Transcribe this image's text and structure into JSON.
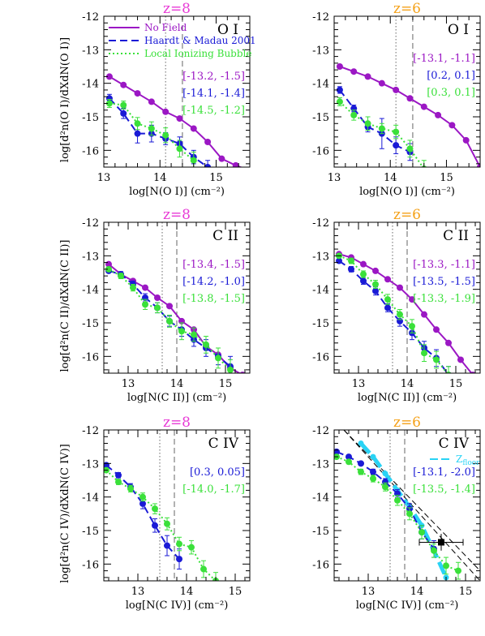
{
  "colors": {
    "no_field": "#9b17c4",
    "haardt_madau": "#1a1ad6",
    "local_bubble": "#3ae03a",
    "zfloor": "#29d3f5",
    "z8_title": "#e83ad6",
    "z6_title": "#f5a21a",
    "observed": "#000000"
  },
  "legend": [
    {
      "label": "No Field",
      "series": "no_field",
      "style": "solid"
    },
    {
      "label": "Haardt & Madau 2001",
      "series": "haardt_madau",
      "style": "dashed"
    },
    {
      "label": "Local Ionizing Bubble",
      "series": "local_bubble",
      "style": "dotted"
    }
  ],
  "zfloor_label": "Z",
  "zfloor_sub": "floor",
  "chart_data": [
    {
      "id": "p11",
      "type": "line",
      "title": "z=8",
      "title_color": "z8_title",
      "ion_label": "O I",
      "xlabel": "log[N(O I)] (cm⁻²)",
      "ylabel": "log[d²n(O I)/dXdN(O I)]",
      "xlim": [
        13.0,
        15.6
      ],
      "ylim": [
        -16.5,
        -12.0
      ],
      "xticks": [
        13,
        14,
        15
      ],
      "yticks": [
        -12,
        -13,
        -14,
        -15,
        -16
      ],
      "vlines": [
        {
          "x": 14.1,
          "style": "dotted"
        },
        {
          "x": 14.4,
          "style": "dashed"
        }
      ],
      "series": [
        {
          "key": "no_field",
          "x": [
            13.1,
            13.35,
            13.6,
            13.85,
            14.1,
            14.35,
            14.6,
            14.85,
            15.1,
            15.35,
            15.6
          ],
          "y": [
            -13.8,
            -14.05,
            -14.3,
            -14.55,
            -14.85,
            -15.05,
            -15.35,
            -15.75,
            -16.25,
            -16.45,
            -16.6
          ]
        },
        {
          "key": "haardt_madau",
          "x": [
            13.1,
            13.35,
            13.6,
            13.85,
            14.1,
            14.35,
            14.6,
            14.85
          ],
          "y": [
            -14.45,
            -14.9,
            -15.5,
            -15.5,
            -15.65,
            -15.8,
            -16.2,
            -16.5
          ],
          "err": [
            0.12,
            0.15,
            0.28,
            0.25,
            0.18,
            0.2,
            0.2,
            0.2
          ]
        },
        {
          "key": "local_bubble",
          "x": [
            13.1,
            13.35,
            13.6,
            13.85,
            14.1,
            14.35,
            14.6
          ],
          "y": [
            -14.6,
            -14.65,
            -15.2,
            -15.35,
            -15.55,
            -15.95,
            -16.3
          ],
          "err": [
            0.12,
            0.12,
            0.18,
            0.2,
            0.22,
            0.25,
            0.25
          ]
        }
      ],
      "pairs": [
        {
          "key": "no_field",
          "text": "[-13.2, -1.5]"
        },
        {
          "key": "haardt_madau",
          "text": "[-14.1, -1.4]"
        },
        {
          "key": "local_bubble",
          "text": "[-14.5, -1.2]"
        }
      ],
      "legend_shown": true
    },
    {
      "id": "p12",
      "type": "line",
      "title": "z=6",
      "title_color": "z6_title",
      "ion_label": "O I",
      "xlabel": "log[N(O I)] (cm⁻²)",
      "ylabel": "",
      "xlim": [
        13.0,
        15.6
      ],
      "ylim": [
        -16.5,
        -12.0
      ],
      "xticks": [
        13,
        14,
        15
      ],
      "yticks": [
        -12,
        -13,
        -14,
        -15,
        -16
      ],
      "vlines": [
        {
          "x": 14.1,
          "style": "dotted"
        },
        {
          "x": 14.4,
          "style": "dashed"
        }
      ],
      "series": [
        {
          "key": "no_field",
          "x": [
            13.1,
            13.35,
            13.6,
            13.85,
            14.1,
            14.35,
            14.6,
            14.85,
            15.1,
            15.35,
            15.6
          ],
          "y": [
            -13.5,
            -13.65,
            -13.8,
            -14.0,
            -14.2,
            -14.45,
            -14.7,
            -14.95,
            -15.25,
            -15.7,
            -16.5
          ]
        },
        {
          "key": "haardt_madau",
          "x": [
            13.1,
            13.35,
            13.6,
            13.85,
            14.1,
            14.35
          ],
          "y": [
            -14.2,
            -14.75,
            -15.3,
            -15.5,
            -15.85,
            -16.05
          ],
          "err": [
            0.1,
            0.1,
            0.15,
            0.45,
            0.25,
            0.25
          ]
        },
        {
          "key": "local_bubble",
          "x": [
            13.1,
            13.35,
            13.6,
            13.85,
            14.1,
            14.35,
            14.6
          ],
          "y": [
            -14.55,
            -14.95,
            -15.2,
            -15.35,
            -15.45,
            -15.95,
            -16.55
          ],
          "err": [
            0.12,
            0.15,
            0.2,
            0.15,
            0.2,
            0.25,
            0.25
          ]
        }
      ],
      "pairs": [
        {
          "key": "no_field",
          "text": "[-13.1, -1.1]"
        },
        {
          "key": "haardt_madau",
          "text": "[0.2, 0.1]"
        },
        {
          "key": "local_bubble",
          "text": "[0.3, 0.1]"
        }
      ],
      "legend_shown": false
    },
    {
      "id": "p21",
      "type": "line",
      "title": "z=8",
      "title_color": "z8_title",
      "ion_label": "C II",
      "xlabel": "log[N(C II)] (cm⁻²)",
      "ylabel": "log[d²n(C II)/dXdN(C II)]",
      "xlim": [
        12.5,
        15.5
      ],
      "ylim": [
        -16.5,
        -12.0
      ],
      "xticks": [
        13,
        14,
        15
      ],
      "yticks": [
        -12,
        -13,
        -14,
        -15,
        -16
      ],
      "vlines": [
        {
          "x": 13.7,
          "style": "dotted"
        },
        {
          "x": 14.0,
          "style": "dashed"
        }
      ],
      "series": [
        {
          "key": "no_field",
          "x": [
            12.6,
            12.85,
            13.1,
            13.35,
            13.6,
            13.85,
            14.1,
            14.35,
            14.6,
            14.85,
            15.1,
            15.35
          ],
          "y": [
            -13.25,
            -13.55,
            -13.75,
            -13.95,
            -14.25,
            -14.5,
            -14.95,
            -15.2,
            -15.7,
            -15.95,
            -16.35,
            -16.55
          ]
        },
        {
          "key": "haardt_madau",
          "x": [
            12.6,
            12.85,
            13.1,
            13.35,
            13.6,
            13.85,
            14.1,
            14.35,
            14.6,
            14.85,
            15.1
          ],
          "y": [
            -13.45,
            -13.55,
            -13.85,
            -14.25,
            -14.55,
            -14.95,
            -15.2,
            -15.5,
            -15.75,
            -16.0,
            -16.3
          ],
          "err": [
            0,
            0.08,
            0.1,
            0.12,
            0.15,
            0.15,
            0.2,
            0.2,
            0.25,
            0.25,
            0.3
          ]
        },
        {
          "key": "local_bubble",
          "x": [
            12.6,
            12.85,
            13.1,
            13.35,
            13.6,
            13.85,
            14.1,
            14.35,
            14.6,
            14.85,
            15.1
          ],
          "y": [
            -13.4,
            -13.6,
            -13.95,
            -14.45,
            -14.55,
            -14.95,
            -15.25,
            -15.35,
            -15.65,
            -16.05,
            -16.4
          ],
          "err": [
            0,
            0.08,
            0.1,
            0.15,
            0.15,
            0.18,
            0.25,
            0.2,
            0.25,
            0.3,
            0.3
          ]
        }
      ],
      "pairs": [
        {
          "key": "no_field",
          "text": "[-13.4, -1.5]"
        },
        {
          "key": "haardt_madau",
          "text": "[-14.2, -1.0]"
        },
        {
          "key": "local_bubble",
          "text": "[-13.8, -1.5]"
        }
      ],
      "legend_shown": false
    },
    {
      "id": "p22",
      "type": "line",
      "title": "z=6",
      "title_color": "z6_title",
      "ion_label": "C II",
      "xlabel": "log[N(C II)] (cm⁻²)",
      "ylabel": "",
      "xlim": [
        12.5,
        15.5
      ],
      "ylim": [
        -16.5,
        -12.0
      ],
      "xticks": [
        13,
        14,
        15
      ],
      "yticks": [
        -12,
        -13,
        -14,
        -15,
        -16
      ],
      "vlines": [
        {
          "x": 13.7,
          "style": "dotted"
        },
        {
          "x": 14.0,
          "style": "dashed"
        }
      ],
      "series": [
        {
          "key": "no_field",
          "x": [
            12.6,
            12.85,
            13.1,
            13.35,
            13.6,
            13.85,
            14.1,
            14.35,
            14.6,
            14.85,
            15.1,
            15.35
          ],
          "y": [
            -12.95,
            -13.05,
            -13.25,
            -13.45,
            -13.7,
            -13.95,
            -14.3,
            -14.75,
            -15.2,
            -15.6,
            -16.1,
            -16.55
          ]
        },
        {
          "key": "haardt_madau",
          "x": [
            12.6,
            12.85,
            13.1,
            13.35,
            13.6,
            13.85,
            14.1,
            14.35,
            14.6,
            14.85
          ],
          "y": [
            -13.15,
            -13.4,
            -13.75,
            -14.05,
            -14.55,
            -14.95,
            -15.3,
            -15.75,
            -16.05,
            -16.55
          ],
          "err": [
            0,
            0.08,
            0.1,
            0.12,
            0.12,
            0.15,
            0.2,
            0.2,
            0.25,
            0.25
          ]
        },
        {
          "key": "local_bubble",
          "x": [
            12.6,
            12.85,
            13.1,
            13.35,
            13.6,
            13.85,
            14.1,
            14.35,
            14.6,
            14.85
          ],
          "y": [
            -13.0,
            -13.15,
            -13.55,
            -13.85,
            -14.3,
            -14.75,
            -15.1,
            -15.9,
            -16.1,
            -16.55
          ],
          "err": [
            0,
            0.08,
            0.1,
            0.12,
            0.15,
            0.15,
            0.2,
            0.25,
            0.25,
            0.25
          ]
        }
      ],
      "pairs": [
        {
          "key": "no_field",
          "text": "[-13.3, -1.1]"
        },
        {
          "key": "haardt_madau",
          "text": "[-13.5, -1.5]"
        },
        {
          "key": "local_bubble",
          "text": "[-13.3, -1.9]"
        }
      ],
      "legend_shown": false
    },
    {
      "id": "p31",
      "type": "line",
      "title": "z=8",
      "title_color": "z8_title",
      "ion_label": "C IV",
      "xlabel": "log[N(C IV)] (cm⁻²)",
      "ylabel": "log[d²n(C IV)/dXdN(C IV)]",
      "xlim": [
        12.3,
        15.3
      ],
      "ylim": [
        -16.5,
        -12.0
      ],
      "xticks": [
        13,
        14,
        15
      ],
      "yticks": [
        -12,
        -13,
        -14,
        -15,
        -16
      ],
      "vlines": [
        {
          "x": 13.45,
          "style": "dotted"
        },
        {
          "x": 13.75,
          "style": "dashed"
        }
      ],
      "series": [
        {
          "key": "haardt_madau",
          "x": [
            12.35,
            12.6,
            12.85,
            13.1,
            13.35,
            13.6,
            13.85
          ],
          "y": [
            -13.05,
            -13.35,
            -13.7,
            -14.2,
            -14.85,
            -15.45,
            -15.85
          ],
          "err": [
            0,
            0.08,
            0.1,
            0.15,
            0.2,
            0.3,
            0.3
          ]
        },
        {
          "key": "local_bubble",
          "x": [
            12.35,
            12.6,
            12.85,
            13.1,
            13.35,
            13.6,
            13.85,
            14.1,
            14.35,
            14.6
          ],
          "y": [
            -13.2,
            -13.55,
            -13.75,
            -14.0,
            -14.35,
            -14.8,
            -15.4,
            -15.5,
            -16.15,
            -16.5
          ],
          "err": [
            0,
            0.08,
            0.1,
            0.12,
            0.15,
            0.18,
            0.2,
            0.2,
            0.25,
            0.25
          ]
        }
      ],
      "pairs": [
        {
          "key": "haardt_madau",
          "text": "[0.3, 0.05]"
        },
        {
          "key": "local_bubble",
          "text": "[-14.0, -1.7]"
        }
      ],
      "legend_shown": false
    },
    {
      "id": "p32",
      "type": "line",
      "title": "z=6",
      "title_color": "z6_title",
      "ion_label": "C IV",
      "xlabel": "log[N(C IV)] (cm⁻²)",
      "ylabel": "",
      "xlim": [
        12.3,
        15.3
      ],
      "ylim": [
        -16.5,
        -12.0
      ],
      "xticks": [
        13,
        14,
        15
      ],
      "yticks": [
        -12,
        -13,
        -14,
        -15,
        -16
      ],
      "vlines": [
        {
          "x": 13.45,
          "style": "dotted"
        },
        {
          "x": 13.75,
          "style": "dashed"
        }
      ],
      "diagonals": [
        {
          "x": [
            12.5,
            15.3
          ],
          "y": [
            -12.0,
            -16.2
          ]
        },
        {
          "x": [
            12.5,
            15.3
          ],
          "y": [
            -12.0,
            -16.5
          ]
        }
      ],
      "series": [
        {
          "key": "zfloor",
          "x": [
            12.85,
            13.1,
            13.35,
            13.6,
            13.85,
            14.1,
            14.35,
            14.6
          ],
          "y": [
            -12.4,
            -12.8,
            -13.3,
            -13.8,
            -14.3,
            -14.85,
            -15.6,
            -16.4
          ],
          "thick": true
        },
        {
          "key": "haardt_madau",
          "x": [
            12.35,
            12.6,
            12.85,
            13.1,
            13.35,
            13.6,
            13.85,
            14.1,
            14.35
          ],
          "y": [
            -12.65,
            -12.8,
            -13.0,
            -13.25,
            -13.55,
            -13.9,
            -14.35,
            -15.05,
            -15.55
          ],
          "err": [
            0,
            0.05,
            0.05,
            0.08,
            0.1,
            0.12,
            0.15,
            0.2,
            0.25
          ]
        },
        {
          "key": "local_bubble",
          "x": [
            12.35,
            12.6,
            12.85,
            13.1,
            13.35,
            13.6,
            13.85,
            14.1,
            14.35,
            14.6,
            14.85
          ],
          "y": [
            -12.8,
            -12.95,
            -13.25,
            -13.45,
            -13.7,
            -14.1,
            -14.5,
            -15.05,
            -15.6,
            -16.05,
            -16.2
          ],
          "err": [
            0,
            0.05,
            0.08,
            0.1,
            0.12,
            0.15,
            0.18,
            0.2,
            0.2,
            0.25,
            0.25
          ]
        }
      ],
      "observed": {
        "x": 14.5,
        "y": -15.35,
        "xerr": 0.45,
        "yerr": 0.25
      },
      "pairs": [
        {
          "key": "haardt_madau",
          "text": "[-13.1, -2.0]"
        },
        {
          "key": "local_bubble",
          "text": "[-13.5, -1.4]"
        }
      ],
      "legend_shown": false,
      "zfloor_legend": true
    }
  ]
}
